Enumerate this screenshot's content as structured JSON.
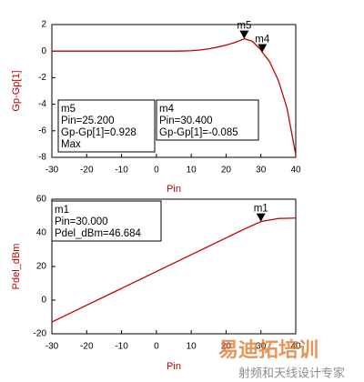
{
  "chart_data": [
    {
      "type": "line",
      "xlabel": "Pin",
      "ylabel": "Gp-Gp[1]",
      "color": "#c00000",
      "x": [
        -30,
        -25,
        -20,
        -15,
        -10,
        -5,
        0,
        5,
        7.5,
        10,
        12.5,
        15,
        17.5,
        20,
        22.5,
        25,
        25.2,
        27.5,
        30,
        30.4,
        32.5,
        35,
        37.5,
        40
      ],
      "values": [
        0,
        0,
        0,
        0,
        0,
        0,
        0,
        0,
        0.01,
        0.03,
        0.08,
        0.17,
        0.3,
        0.45,
        0.65,
        0.9,
        0.928,
        0.75,
        0.1,
        -0.085,
        -0.8,
        -2.2,
        -4.3,
        -7.8
      ],
      "xlim": [
        -30,
        40
      ],
      "xticks": [
        -30,
        -20,
        -10,
        0,
        10,
        20,
        30,
        40
      ],
      "ylim": [
        -8,
        2
      ],
      "yticks": [
        -8,
        -6,
        -4,
        -2,
        0,
        2
      ],
      "markers": [
        {
          "name": "m5",
          "x": 25.2,
          "y": 0.928,
          "lines": [
            "Pin=25.200",
            "Gp-Gp[1]=0.928",
            "Max"
          ]
        },
        {
          "name": "m4",
          "x": 30.4,
          "y": -0.085,
          "lines": [
            "Pin=30.400",
            "Gp-Gp[1]=-0.085"
          ]
        }
      ]
    },
    {
      "type": "line",
      "xlabel": "Pin",
      "ylabel": "Pdel_dBm",
      "color": "#c00000",
      "x": [
        -30,
        -20,
        -10,
        0,
        10,
        20,
        25,
        30,
        35,
        40
      ],
      "values": [
        -13,
        -3,
        7,
        17,
        27,
        37,
        42,
        46.684,
        48.5,
        48.8
      ],
      "xlim": [
        -30,
        40
      ],
      "xticks": [
        -30,
        -20,
        -10,
        0,
        10,
        20,
        30,
        40
      ],
      "ylim": [
        -20,
        60
      ],
      "yticks": [
        -20,
        0,
        20,
        40,
        60
      ],
      "markers": [
        {
          "name": "m1",
          "x": 30,
          "y": 46.684,
          "lines": [
            "Pin=30.000",
            "Pdel_dBm=46.684"
          ]
        }
      ]
    }
  ],
  "watermark": {
    "title": "易迪拓培训",
    "subtitle": "射频和天线设计专家"
  }
}
